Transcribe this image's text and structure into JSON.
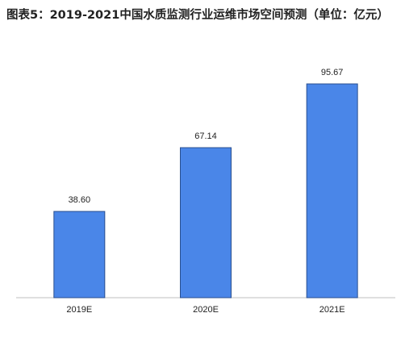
{
  "chart_data": {
    "type": "bar",
    "title": "图表5：2019-2021中国水质监测行业运维市场空间预测（单位：亿元）",
    "categories": [
      "2019E",
      "2020E",
      "2021E"
    ],
    "values": [
      38.6,
      67.14,
      95.67
    ],
    "value_labels": [
      "38.60",
      "67.14",
      "95.67"
    ],
    "color": "#4a86e8"
  }
}
